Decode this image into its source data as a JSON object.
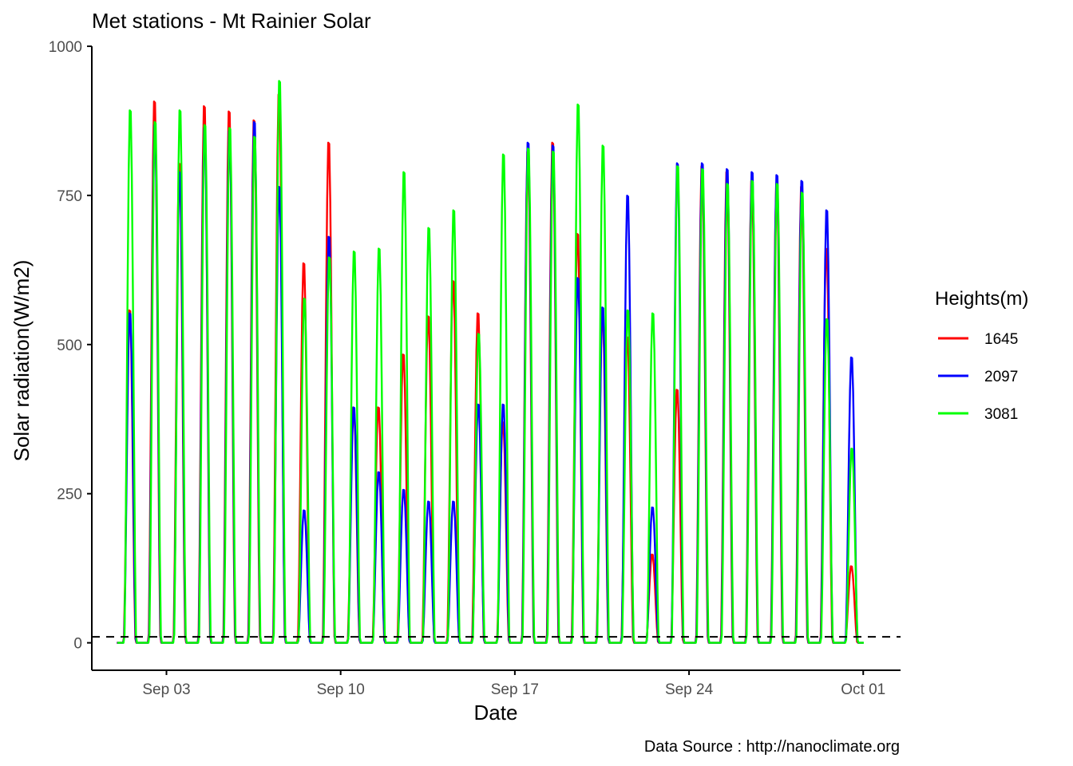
{
  "chart_data": {
    "type": "line",
    "title": "Met stations -  Mt Rainier  Solar",
    "xlabel": "Date",
    "ylabel": "Solar radiation(W/m2)",
    "caption": "Data Source : http://nanoclimate.org",
    "x_ticks": [
      "Sep 03",
      "Sep 10",
      "Sep 17",
      "Sep 24",
      "Oct 01"
    ],
    "x_tick_days": [
      3,
      10,
      17,
      24,
      31
    ],
    "y_ticks": [
      0,
      250,
      500,
      750,
      1000
    ],
    "xlim_days": [
      0.0,
      32.5
    ],
    "ylim": [
      -46,
      1000
    ],
    "reference_line": {
      "y": 10,
      "style": "dashed",
      "color": "#000000"
    },
    "legend": {
      "title": "Heights(m)",
      "position": "right"
    },
    "grid": false,
    "series": [
      {
        "name": "1645",
        "color": "#ff0000",
        "daily_peaks": [
          565,
          920,
          815,
          912,
          903,
          888,
          932,
          645,
          850,
          400,
          400,
          490,
          555,
          615,
          560,
          375,
          835,
          850,
          695,
          560,
          520,
          150,
          430,
          810,
          800,
          785,
          780,
          775,
          670,
          130
        ]
      },
      {
        "name": "2097",
        "color": "#0000ff",
        "daily_peaks": [
          560,
          880,
          800,
          875,
          870,
          885,
          775,
          225,
          690,
          400,
          290,
          260,
          240,
          240,
          405,
          405,
          850,
          845,
          620,
          570,
          760,
          230,
          815,
          815,
          805,
          800,
          795,
          785,
          735,
          485
        ]
      },
      {
        "name": "3081",
        "color": "#00ff00",
        "daily_peaks": [
          905,
          885,
          905,
          880,
          875,
          860,
          955,
          585,
          655,
          665,
          670,
          800,
          705,
          735,
          525,
          830,
          840,
          835,
          915,
          845,
          565,
          560,
          810,
          805,
          780,
          785,
          780,
          765,
          550,
          330
        ]
      }
    ]
  }
}
